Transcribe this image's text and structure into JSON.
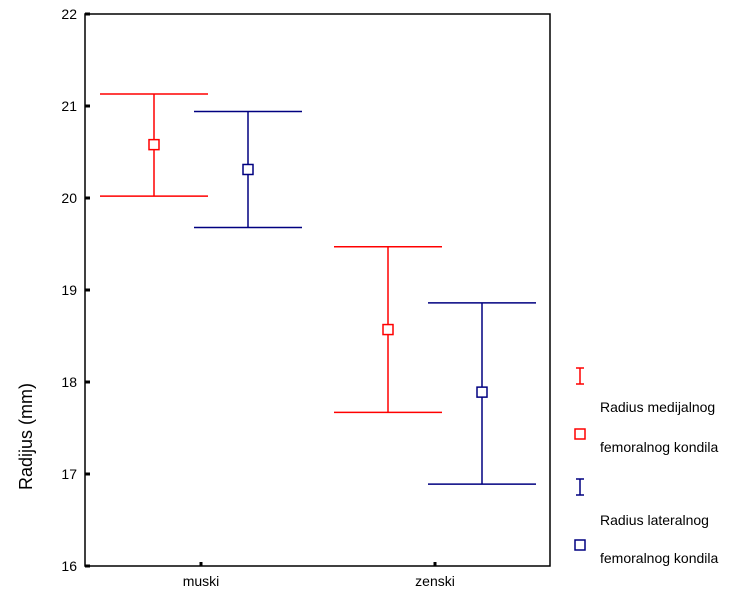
{
  "chart_data": {
    "type": "errorbar",
    "title": "",
    "xlabel": "",
    "ylabel": "Radijus (mm)",
    "ylim": [
      16,
      22
    ],
    "yticks": [
      "16",
      "17",
      "18",
      "19",
      "20",
      "21",
      "22"
    ],
    "categories": [
      "muski",
      "zenski"
    ],
    "grid": false,
    "legend_position": "right",
    "series": [
      {
        "name_lines": [
          "Radius medijalnog",
          "femoralnog kondila"
        ],
        "color": "#ff0000",
        "mean": [
          20.58,
          18.57
        ],
        "lower": [
          20.02,
          17.67
        ],
        "upper": [
          21.13,
          19.47
        ]
      },
      {
        "name_lines": [
          "Radius lateralnog",
          "femoralnog kondila"
        ],
        "color": "#000080",
        "mean": [
          20.31,
          17.89
        ],
        "lower": [
          19.68,
          16.89
        ],
        "upper": [
          20.94,
          18.86
        ]
      }
    ]
  }
}
